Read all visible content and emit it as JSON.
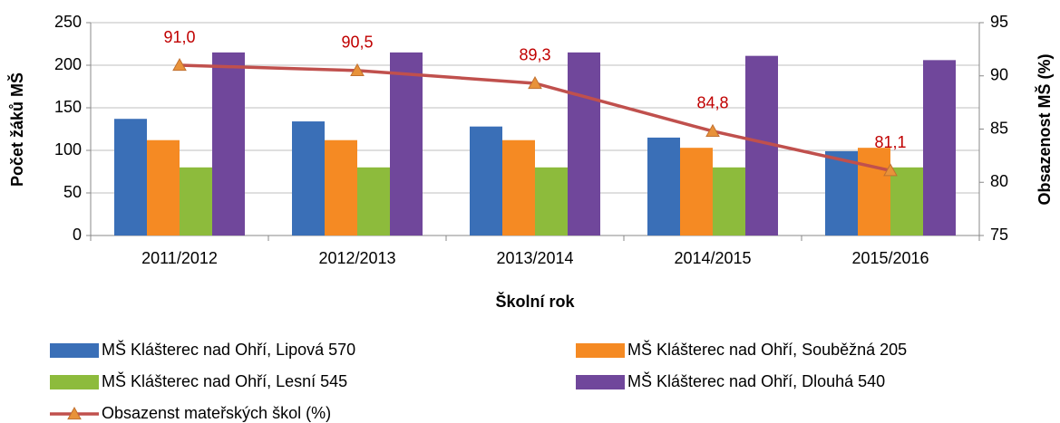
{
  "chart_data": {
    "type": "bar",
    "categories": [
      "2011/2012",
      "2012/2013",
      "2013/2014",
      "2014/2015",
      "2015/2016"
    ],
    "x_label": "Školní rok",
    "y_label": "Počet žáků MŠ",
    "y2_label": "Obsazenost MŠ (%)",
    "ylim": [
      0,
      250
    ],
    "yticks": [
      0,
      50,
      100,
      150,
      200,
      250
    ],
    "y2lim": [
      75,
      95
    ],
    "y2ticks": [
      75,
      80,
      85,
      90,
      95
    ],
    "grid": true,
    "legend": "bottom",
    "series": [
      {
        "name": "MŠ Klášterec nad Ohří, Lipová 570",
        "color": "#3a6fb7",
        "values": [
          137,
          134,
          128,
          115,
          99
        ]
      },
      {
        "name": "MŠ Klášterec nad Ohří, Souběžná 205",
        "color": "#f58a23",
        "values": [
          112,
          112,
          112,
          103,
          103
        ]
      },
      {
        "name": "MŠ Klášterec nad Ohří, Lesní 545",
        "color": "#8dbb3c",
        "values": [
          80,
          80,
          80,
          80,
          80
        ]
      },
      {
        "name": "MŠ Klášterec nad Ohří, Dlouhá 540",
        "color": "#70479b",
        "values": [
          215,
          215,
          215,
          211,
          206
        ]
      },
      {
        "name": "Obsazenst mateřských škol (%)",
        "color": "#c0504d",
        "marker_color": "#e8923a",
        "type": "line",
        "axis": "y2",
        "values": [
          91.0,
          90.5,
          89.3,
          84.8,
          81.1
        ],
        "value_labels": [
          "91,0",
          "90,5",
          "89,3",
          "84,8",
          "81,1"
        ],
        "label_color": "#c00000"
      }
    ]
  }
}
